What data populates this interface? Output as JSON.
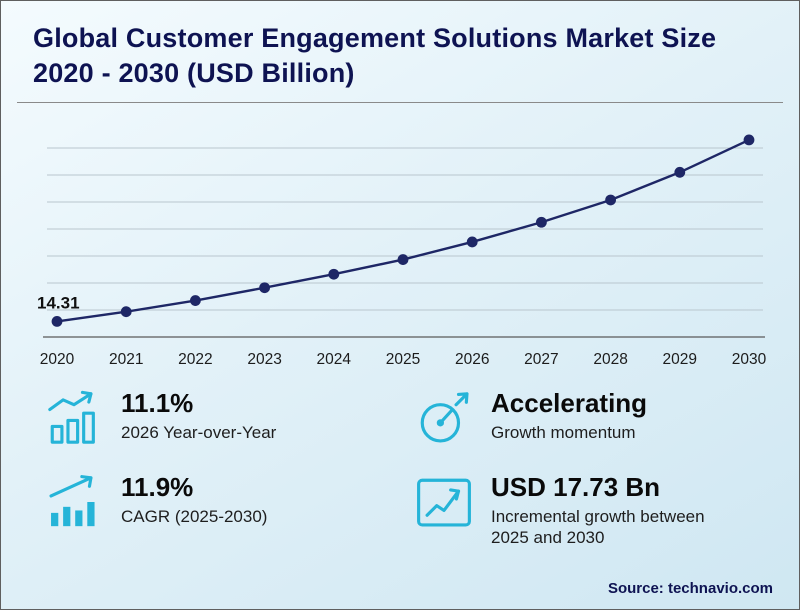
{
  "title": "Global Customer Engagement Solutions Market Size 2020 - 2030 (USD Billion)",
  "chart_data": {
    "type": "line",
    "title": "Global Customer Engagement Solutions Market Size 2020 - 2030 (USD Billion)",
    "categories": [
      "2020",
      "2021",
      "2022",
      "2023",
      "2024",
      "2025",
      "2026",
      "2027",
      "2028",
      "2029",
      "2030"
    ],
    "values": [
      14.31,
      15.75,
      17.4,
      19.3,
      21.3,
      23.47,
      26.08,
      29.0,
      32.3,
      36.4,
      41.2
    ],
    "labeled_point": {
      "index": 0,
      "text": "14.31"
    },
    "xlabel": "",
    "ylabel": "",
    "ylim": [
      12,
      44
    ],
    "gridline_values": [
      16,
      20,
      24,
      28,
      32,
      36,
      40
    ],
    "grid": true,
    "legend": "none",
    "line_color": "#1e2766",
    "marker_color": "#1e2766",
    "axis_color": "#5a5a5a",
    "grid_color": "#b9c6ce",
    "tick_color": "#1c1c1c"
  },
  "stats": [
    {
      "icon": "chart-increase-icon",
      "value": "11.1%",
      "label": "2026 Year-over-Year"
    },
    {
      "icon": "gauge-icon",
      "value": "Accelerating",
      "label": "Growth momentum"
    },
    {
      "icon": "bar-growth-icon",
      "value": "11.9%",
      "label": "CAGR (2025-2030)"
    },
    {
      "icon": "boxed-growth-icon",
      "value": "USD 17.73 Bn",
      "label": "Incremental growth between 2025 and 2030"
    }
  ],
  "source": "Source: technavio.com",
  "colors": {
    "accent": "#25b4d8",
    "navy": "#0e1352"
  }
}
